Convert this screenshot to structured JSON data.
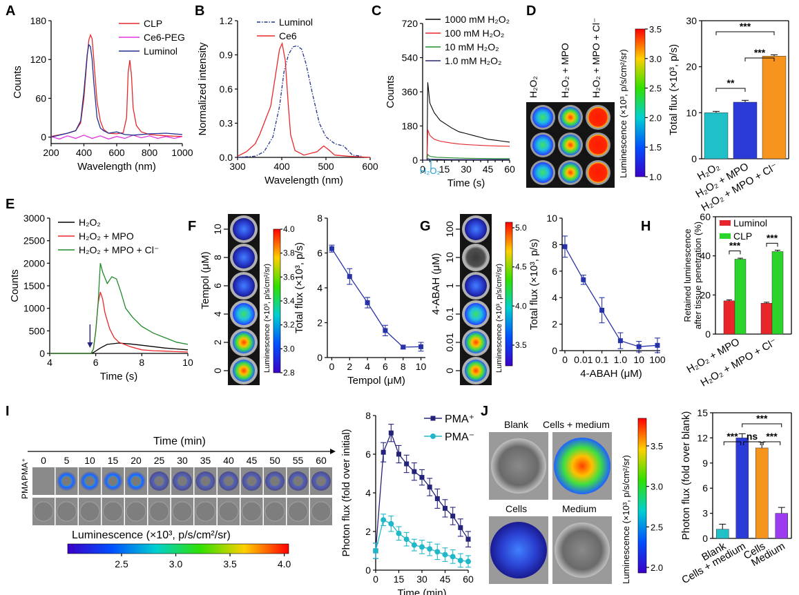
{
  "panels": {
    "A": "A",
    "B": "B",
    "C": "C",
    "D": "D",
    "E": "E",
    "F": "F",
    "G": "G",
    "H": "H",
    "I": "I",
    "J": "J"
  },
  "colors": {
    "red": "#e8262a",
    "blue": "#1f2f8f",
    "magenta": "#e034e0",
    "navy": "#24237a",
    "green": "#1f8a2a",
    "cyan": "#20b8c8",
    "orange": "#f7941d",
    "purple": "#9b3cf0",
    "bblue": "#2b3bd8"
  },
  "chart_data": [
    {
      "panel": "A",
      "type": "line",
      "xlabel": "Wavelength (nm)",
      "ylabel": "Counts",
      "xlim": [
        200,
        1000
      ],
      "ylim": [
        -10,
        180
      ],
      "xticks": [
        "200",
        "400",
        "600",
        "800",
        "1000"
      ],
      "yticks": [
        "0",
        "60",
        "120",
        "180"
      ],
      "series": [
        {
          "name": "CLP",
          "color": "#e8262a",
          "x": [
            200,
            300,
            350,
            380,
            400,
            420,
            430,
            440,
            450,
            460,
            480,
            500,
            520,
            550,
            600,
            640,
            660,
            670,
            680,
            690,
            700,
            720,
            750,
            800,
            900,
            1000
          ],
          "y": [
            1,
            6,
            10,
            22,
            60,
            125,
            150,
            158,
            152,
            120,
            55,
            25,
            12,
            6,
            5,
            7,
            30,
            100,
            119,
            95,
            45,
            18,
            8,
            4,
            2,
            1
          ]
        },
        {
          "name": "Ce6-PEG",
          "color": "#e034e0",
          "x": [
            200,
            250,
            300,
            350,
            400,
            450,
            500,
            550,
            600,
            650,
            700,
            750,
            800,
            850,
            900,
            950,
            1000
          ],
          "y": [
            1,
            -3,
            2,
            -2,
            3,
            -2,
            2,
            -3,
            1,
            -2,
            3,
            -1,
            2,
            -2,
            1,
            -2,
            1
          ]
        },
        {
          "name": "Luminol",
          "color": "#1f2f8f",
          "x": [
            200,
            300,
            350,
            380,
            400,
            420,
            430,
            440,
            450,
            460,
            480,
            500,
            520,
            550,
            600,
            650,
            700,
            800,
            900,
            1000
          ],
          "y": [
            0,
            6,
            10,
            25,
            70,
            128,
            143,
            140,
            120,
            85,
            30,
            14,
            10,
            6,
            8,
            4,
            3,
            5,
            6,
            4
          ]
        }
      ]
    },
    {
      "panel": "B",
      "type": "line",
      "xlabel": "Wavelength (nm)",
      "ylabel": "Normalized intensity",
      "xlim": [
        300,
        600
      ],
      "ylim": [
        0,
        1.2
      ],
      "xticks": [
        "300",
        "400",
        "500",
        "600"
      ],
      "yticks": [
        "0.0",
        "0.3",
        "0.6",
        "0.9",
        "1.2"
      ],
      "series": [
        {
          "name": "Luminol",
          "color": "#1f2f8f",
          "dash": true,
          "x": [
            300,
            340,
            360,
            380,
            395,
            405,
            415,
            425,
            435,
            445,
            455,
            470,
            485,
            500,
            520,
            540,
            560,
            580
          ],
          "y": [
            0,
            0.01,
            0.05,
            0.18,
            0.45,
            0.75,
            0.9,
            0.97,
            0.98,
            0.95,
            0.82,
            0.55,
            0.3,
            0.18,
            0.12,
            0.1,
            0.02,
            0.01
          ]
        },
        {
          "name": "Ce6",
          "color": "#e8262a",
          "x": [
            300,
            320,
            340,
            350,
            360,
            375,
            385,
            395,
            401,
            408,
            415,
            420,
            430,
            450,
            480,
            495,
            505,
            520,
            550,
            600
          ],
          "y": [
            0.01,
            0.05,
            0.12,
            0.2,
            0.3,
            0.45,
            0.7,
            0.95,
            1.0,
            0.85,
            0.45,
            0.2,
            0.06,
            0.02,
            0.05,
            0.1,
            0.07,
            0.02,
            0.01,
            0.0
          ]
        }
      ]
    },
    {
      "panel": "C",
      "type": "line",
      "xlabel": "Time (s)",
      "ylabel": "Counts",
      "annotation": "H₂O₂",
      "xlim": [
        0,
        60
      ],
      "ylim": [
        0,
        720
      ],
      "xticks": [
        "0",
        "15",
        "30",
        "45",
        "60"
      ],
      "xticks_minor": [
        "5",
        "10",
        "20",
        "25",
        "35",
        "40",
        "50",
        "55"
      ],
      "yticks": [
        "0",
        "180",
        "360",
        "540",
        "720"
      ],
      "series": [
        {
          "name": "1000 mM H₂O₂",
          "color": "#000000",
          "x": [
            0,
            2,
            3,
            3.5,
            5,
            8,
            12,
            16,
            20,
            25,
            30,
            35,
            40,
            45,
            50,
            55,
            60
          ],
          "y": [
            0,
            0,
            0,
            410,
            300,
            250,
            210,
            190,
            170,
            150,
            140,
            130,
            120,
            110,
            105,
            100,
            95
          ]
        },
        {
          "name": "100 mM H₂O₂",
          "color": "#e8262a",
          "x": [
            0,
            2,
            3,
            3.5,
            5,
            8,
            12,
            16,
            20,
            25,
            30,
            35,
            40,
            45,
            50,
            55,
            60
          ],
          "y": [
            0,
            0,
            0,
            160,
            130,
            110,
            100,
            95,
            90,
            85,
            82,
            80,
            78,
            76,
            75,
            74,
            73
          ]
        },
        {
          "name": "10 mM H₂O₂",
          "color": "#1f8a2a",
          "x": [
            0,
            2,
            3,
            3.5,
            5,
            10,
            20,
            30,
            40,
            50,
            60
          ],
          "y": [
            0,
            0,
            0,
            30,
            20,
            15,
            12,
            10,
            9,
            8,
            8
          ]
        },
        {
          "name": "1.0 mM H₂O₂",
          "color": "#24237a",
          "x": [
            0,
            2,
            3,
            3.5,
            5,
            10,
            20,
            30,
            40,
            50,
            60
          ],
          "y": [
            0,
            0,
            0,
            8,
            5,
            4,
            3,
            3,
            3,
            3,
            3
          ]
        }
      ]
    },
    {
      "panel": "D",
      "type": "bar",
      "ylabel": "Total flux (×10³, p/s)",
      "ylim": [
        0,
        30
      ],
      "yticks": [
        "0",
        "10",
        "20",
        "30"
      ],
      "categories": [
        "H₂O₂",
        "H₂O₂ + MPO",
        "H₂O₂ + MPO + Cl⁻"
      ],
      "values": [
        10,
        12.3,
        22.3
      ],
      "errors": [
        0.3,
        0.4,
        0.3
      ],
      "colors": [
        "#20c0c8",
        "#2b3bd8",
        "#f7941d"
      ],
      "sig": [
        {
          "from": 0,
          "to": 1,
          "label": "**"
        },
        {
          "from": 1,
          "to": 2,
          "label": "***"
        },
        {
          "from": 0,
          "to": 2,
          "label": "***"
        }
      ]
    },
    {
      "panel": "E",
      "type": "line",
      "xlabel": "Time (s)",
      "ylabel": "Counts",
      "xlim": [
        4,
        10
      ],
      "ylim": [
        0,
        3000
      ],
      "xticks": [
        "4",
        "6",
        "8",
        "10"
      ],
      "yticks": [
        "0",
        "500",
        "1000",
        "1500",
        "2000",
        "2500",
        "3000"
      ],
      "series": [
        {
          "name": "H₂O₂",
          "color": "#000000",
          "x": [
            4,
            5,
            5.8,
            5.9,
            6.2,
            6.5,
            7,
            7.5,
            8,
            8.5,
            9,
            9.5,
            10
          ],
          "y": [
            0,
            0,
            0,
            20,
            120,
            200,
            230,
            210,
            180,
            150,
            120,
            100,
            80
          ]
        },
        {
          "name": "H₂O₂ + MPO",
          "color": "#e8262a",
          "x": [
            4,
            5,
            5.8,
            5.9,
            6.0,
            6.1,
            6.2,
            6.3,
            6.4,
            6.6,
            6.8,
            7,
            7.5,
            8,
            8.5,
            9,
            9.5,
            10
          ],
          "y": [
            0,
            0,
            0,
            100,
            500,
            1100,
            1360,
            1200,
            900,
            550,
            350,
            250,
            150,
            80,
            60,
            50,
            40,
            30
          ]
        },
        {
          "name": "H₂O₂ + MPO + Cl⁻",
          "color": "#1f8a2a",
          "x": [
            4,
            5,
            5.8,
            5.9,
            6.0,
            6.1,
            6.2,
            6.3,
            6.5,
            6.7,
            6.9,
            7.1,
            7.3,
            7.6,
            8,
            8.5,
            9,
            9.5,
            10
          ],
          "y": [
            0,
            0,
            0,
            100,
            500,
            1100,
            2000,
            1800,
            1550,
            1700,
            1650,
            1350,
            1000,
            800,
            600,
            450,
            350,
            250,
            200
          ]
        }
      ]
    },
    {
      "panel": "F",
      "type": "line",
      "xlabel": "Tempol (μM)",
      "ylabel": "Total flux (×10³, p/s)",
      "xlim": [
        -0.5,
        10.5
      ],
      "ylim": [
        0,
        8
      ],
      "xticks": [
        "0",
        "2",
        "4",
        "6",
        "8",
        "10"
      ],
      "yticks": [
        "0",
        "2",
        "4",
        "6",
        "8"
      ],
      "series": [
        {
          "name": "",
          "color": "#2832a8",
          "x": [
            0,
            2,
            4,
            6,
            8,
            10
          ],
          "y": [
            6.25,
            4.65,
            3.15,
            1.55,
            0.6,
            0.62
          ],
          "errors": [
            0.2,
            0.45,
            0.3,
            0.3,
            0.1,
            0.25
          ]
        }
      ]
    },
    {
      "panel": "G",
      "type": "line",
      "xlabel": "4-ABAH (μM)",
      "ylabel": "Total flux (×10³, p/s)",
      "xlim": [
        0,
        100
      ],
      "ylim": [
        0,
        10
      ],
      "xticks": [
        "0",
        "0.01",
        "0.1",
        "1.0",
        "10",
        "100"
      ],
      "yticks": [
        "0",
        "2",
        "4",
        "6",
        "8",
        "10"
      ],
      "series": [
        {
          "name": "",
          "color": "#2832a8",
          "x": [
            "0",
            "0.01",
            "0.1",
            "1.0",
            "10",
            "100"
          ],
          "y": [
            7.85,
            5.35,
            3.05,
            0.75,
            0.3,
            0.4
          ],
          "errors": [
            0.8,
            0.35,
            0.95,
            0.6,
            0.4,
            0.55
          ]
        }
      ]
    },
    {
      "panel": "H",
      "type": "bar",
      "ylabel": "Retained luminescence after tissue penetration (%)",
      "ylim": [
        0,
        60
      ],
      "yticks": [
        "0",
        "20",
        "40",
        "60"
      ],
      "categories": [
        "H₂O₂ + MPO",
        "H₂O₂ + MPO + Cl⁻"
      ],
      "series": [
        {
          "name": "Luminol",
          "color": "#e8262a",
          "values": [
            17,
            15.8
          ],
          "errors": [
            0.5,
            0.5
          ]
        },
        {
          "name": "CLP",
          "color": "#2bd42b",
          "values": [
            38.3,
            42.2
          ],
          "errors": [
            0.5,
            0.7
          ]
        }
      ],
      "sig": [
        "***",
        "***"
      ]
    },
    {
      "panel": "I",
      "type": "line",
      "xlabel": "Time (min)",
      "ylabel": "Photon flux (fold over initial)",
      "xlim": [
        0,
        60
      ],
      "ylim": [
        0,
        8
      ],
      "xticks": [
        "0",
        "15",
        "30",
        "45",
        "60"
      ],
      "yticks": [
        "0",
        "2",
        "4",
        "6",
        "8"
      ],
      "series": [
        {
          "name": "PMA⁺",
          "color": "#24237a",
          "x": [
            0,
            5,
            10,
            15,
            20,
            25,
            30,
            35,
            40,
            45,
            50,
            55,
            60
          ],
          "y": [
            1.0,
            6.1,
            7.1,
            6.0,
            5.5,
            5.1,
            4.8,
            4.3,
            3.7,
            3.2,
            2.8,
            2.2,
            1.6
          ],
          "errors": [
            0.4,
            0.5,
            0.45,
            0.45,
            0.45,
            0.45,
            0.4,
            0.45,
            0.5,
            0.45,
            0.45,
            0.45,
            0.4
          ]
        },
        {
          "name": "PMA⁻",
          "color": "#20b8c8",
          "x": [
            0,
            5,
            10,
            15,
            20,
            25,
            30,
            35,
            40,
            45,
            50,
            55,
            60
          ],
          "y": [
            1.0,
            2.6,
            2.4,
            1.9,
            1.6,
            1.3,
            1.2,
            1.1,
            0.95,
            0.8,
            0.7,
            0.5,
            0.45
          ],
          "errors": [
            0.4,
            0.3,
            0.4,
            0.35,
            0.35,
            0.3,
            0.35,
            0.35,
            0.4,
            0.35,
            0.35,
            0.35,
            0.3
          ]
        }
      ]
    },
    {
      "panel": "J",
      "type": "bar",
      "ylabel": "Photon flux (fold over blank)",
      "ylim": [
        0,
        15
      ],
      "yticks": [
        "0",
        "3",
        "6",
        "9",
        "12",
        "15"
      ],
      "categories": [
        "Blank",
        "Cells + medium",
        "Cells",
        "Medium"
      ],
      "values": [
        1.1,
        12.0,
        10.8,
        3.0
      ],
      "errors": [
        0.6,
        0.5,
        0.7,
        0.7
      ],
      "colors": [
        "#20c0c8",
        "#2b3bd8",
        "#f7941d",
        "#9b3cf0"
      ],
      "sig": [
        {
          "from": 0,
          "to": 1,
          "label": "***"
        },
        {
          "from": 1,
          "to": 2,
          "label": "ns"
        },
        {
          "from": 2,
          "to": 3,
          "label": "***"
        },
        {
          "from": 1,
          "to": 3,
          "label": "***"
        }
      ]
    }
  ],
  "imaging": {
    "D": {
      "columns": [
        "H₂O₂",
        "H₂O₂ + MPO",
        "H₂O₂ + MPO + Cl⁻"
      ],
      "colorbar_label": "Luminescence (×10³, p/s/cm²/sr)",
      "colorbar_ticks": [
        "1.0",
        "1.5",
        "2.0",
        "2.5",
        "3.0",
        "3.5"
      ]
    },
    "F": {
      "axis_label": "Tempol (μM)",
      "ticks": [
        "10",
        "8",
        "6",
        "4",
        "2",
        "0"
      ],
      "colorbar_label": "Luminescence (×10³, p/s/cm²/sr)",
      "colorbar_ticks": [
        "2.8",
        "3.0",
        "3.2",
        "3.4",
        "3.6",
        "3.8",
        "4.0"
      ]
    },
    "G": {
      "axis_label": "4-ABAH (μM)",
      "ticks": [
        "100",
        "10",
        "1",
        "0.1",
        "0.01",
        "0"
      ],
      "colorbar_label": "Luminescence (×10³, p/s/cm²/sr)",
      "colorbar_ticks": [
        "3.5",
        "4.0",
        "4.5",
        "5.0"
      ]
    },
    "I": {
      "time_label": "Time (min)",
      "times": [
        "0",
        "5",
        "10",
        "15",
        "20",
        "25",
        "30",
        "35",
        "40",
        "45",
        "50",
        "55",
        "60"
      ],
      "row_top": "PMA⁺",
      "row_bottom": "PMA⁻",
      "colorbar_label": "Luminescence (×10³, p/s/cm²/sr)",
      "colorbar_ticks": [
        "2.5",
        "3.0",
        "3.5",
        "4.0"
      ]
    },
    "J": {
      "labels": [
        "Blank",
        "Cells + medium",
        "Cells",
        "Medium"
      ],
      "colorbar_label": "Luminescence (×10³, p/s/cm²/sr)",
      "colorbar_ticks": [
        "2.0",
        "2.5",
        "3.0",
        "3.5"
      ]
    }
  }
}
